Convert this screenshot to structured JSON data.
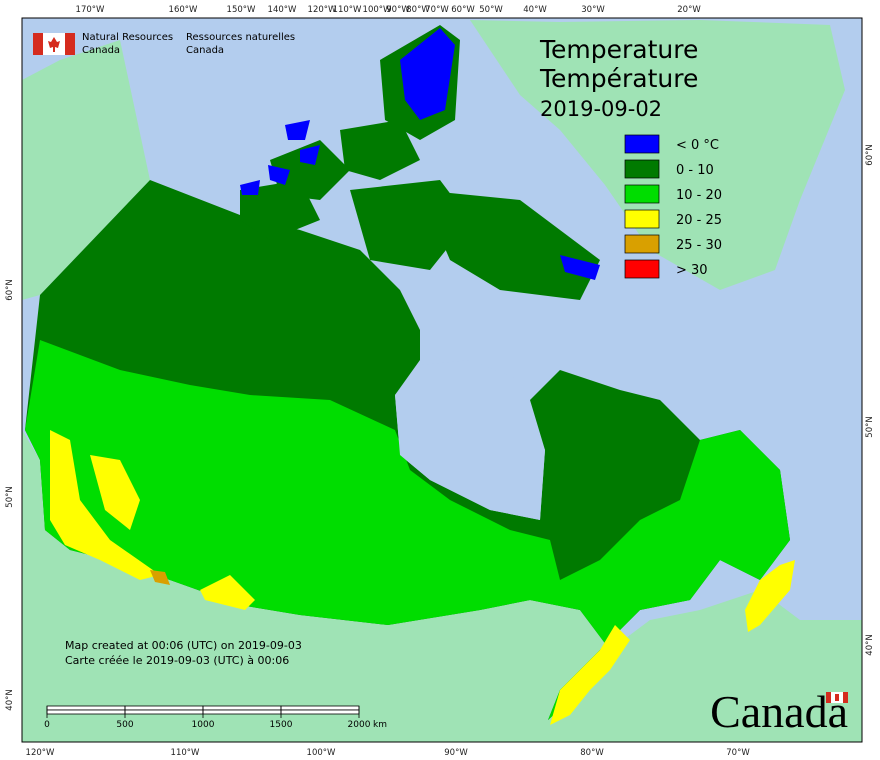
{
  "header": {
    "agency_en": [
      "Natural Resources",
      "Canada"
    ],
    "agency_fr": [
      "Ressources naturelles",
      "Canada"
    ]
  },
  "title": [
    "Temperature",
    "Température",
    "2019-09-02"
  ],
  "legend": [
    {
      "label": "< 0 °C",
      "color": "#0000ff"
    },
    {
      "label": "0 - 10",
      "color": "#007a00"
    },
    {
      "label": "10 - 20",
      "color": "#00dd00"
    },
    {
      "label": "20 - 25",
      "color": "#ffff00"
    },
    {
      "label": "25 - 30",
      "color": "#d9a000"
    },
    {
      "label": "> 30",
      "color": "#ff0000"
    }
  ],
  "top_lon_labels": [
    "170°W",
    "160°W",
    "150°W",
    "140°W",
    "120°W",
    "110°W",
    "100°W",
    "90°W",
    "80°W",
    "70°W",
    "60°W",
    "50°W",
    "40°W",
    "30°W",
    "20°W"
  ],
  "bottom_lon_labels": [
    "120°W",
    "110°W",
    "100°W",
    "90°W",
    "80°W",
    "70°W"
  ],
  "left_lat_labels": [
    "60°N",
    "50°N",
    "40°N"
  ],
  "right_lat_labels": [
    "60°N",
    "50°N",
    "40°N"
  ],
  "credits": [
    "Map created at 00:06 (UTC) on 2019-09-03",
    "Carte créée le 2019-09-03 (UTC) à 00:06"
  ],
  "scale": {
    "ticks": [
      0,
      500,
      1000,
      1500,
      2000
    ],
    "unit": "km"
  },
  "wordmark": "Canada"
}
